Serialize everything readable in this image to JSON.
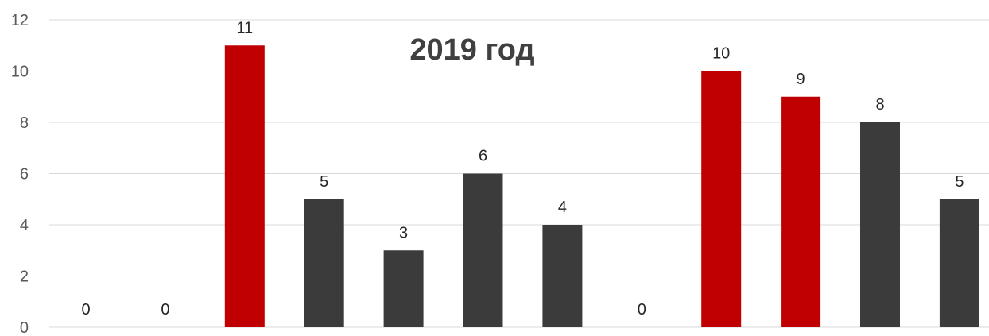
{
  "chart_data": {
    "type": "bar",
    "title": "2019 год",
    "xlabel": "",
    "ylabel": "",
    "ylim": [
      0,
      12
    ],
    "yticks": [
      0,
      2,
      4,
      6,
      8,
      10,
      12
    ],
    "grid": true,
    "legend": "none",
    "categories": [
      "",
      "",
      "",
      "",
      "",
      "",
      "",
      "",
      "",
      "",
      "",
      ""
    ],
    "values": [
      0,
      0,
      11,
      5,
      3,
      6,
      4,
      0,
      10,
      9,
      8,
      5
    ],
    "bar_colors": [
      "#c00000",
      "#3b3b3b",
      "#c00000",
      "#3b3b3b",
      "#3b3b3b",
      "#3b3b3b",
      "#3b3b3b",
      "#3b3b3b",
      "#c00000",
      "#c00000",
      "#3b3b3b",
      "#3b3b3b"
    ],
    "highlight_color": "#c00000",
    "base_color": "#3b3b3b"
  }
}
